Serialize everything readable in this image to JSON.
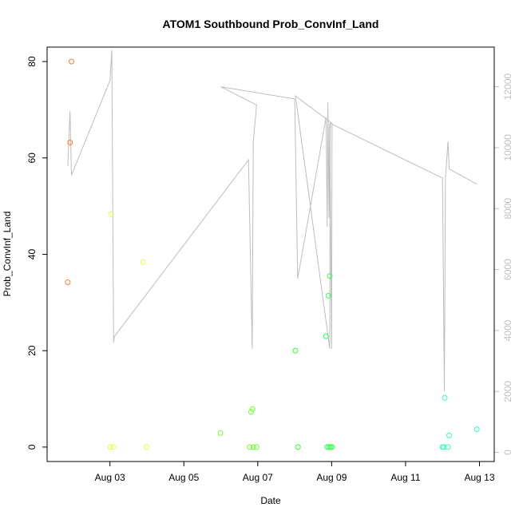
{
  "chart_data": {
    "type": "scatter",
    "title": "ATOM1 Southbound Prob_ConvInf_Land",
    "xlabel": "Date",
    "ylabel": "Prob_ConvInf_Land",
    "xlim_days": [
      1.3,
      13.4
    ],
    "ylim": [
      -3,
      83
    ],
    "x_ticks": [
      {
        "day": 3,
        "label": "Aug 03"
      },
      {
        "day": 5,
        "label": "Aug 05"
      },
      {
        "day": 7,
        "label": "Aug 07"
      },
      {
        "day": 9,
        "label": "Aug 09"
      },
      {
        "day": 11,
        "label": "Aug 11"
      },
      {
        "day": 13,
        "label": "Aug 13"
      }
    ],
    "y_ticks": [
      0,
      20,
      40,
      60,
      80
    ],
    "secondary_axis": {
      "ticks": [
        0,
        2000,
        4000,
        6000,
        8000,
        10000,
        12000
      ],
      "lim": [
        -300,
        13300
      ],
      "color": "#c0c0c0"
    },
    "points": [
      {
        "x": 1.86,
        "y": 34.2,
        "color": "#ff7f2a"
      },
      {
        "x": 1.92,
        "y": 63.2,
        "color": "#ff7f2a"
      },
      {
        "x": 1.96,
        "y": 80.0,
        "color": "#ff7f2a"
      },
      {
        "x": 3.03,
        "y": 48.3,
        "color": "#e6ff3a"
      },
      {
        "x": 3.01,
        "y": 0.0,
        "color": "#e6ff3a"
      },
      {
        "x": 3.1,
        "y": 0.0,
        "color": "#e6ff3a"
      },
      {
        "x": 3.9,
        "y": 38.4,
        "color": "#e6ff3a"
      },
      {
        "x": 3.99,
        "y": 0.0,
        "color": "#e6ff3a"
      },
      {
        "x": 5.99,
        "y": 2.9,
        "color": "#7dff2a"
      },
      {
        "x": 6.78,
        "y": 0.0,
        "color": "#6dff2a"
      },
      {
        "x": 6.82,
        "y": 7.3,
        "color": "#6dff2a"
      },
      {
        "x": 6.86,
        "y": 7.9,
        "color": "#6dff2a"
      },
      {
        "x": 6.88,
        "y": 0.0,
        "color": "#6dff2a"
      },
      {
        "x": 6.97,
        "y": 0.0,
        "color": "#6dff2a"
      },
      {
        "x": 8.02,
        "y": 20.0,
        "color": "#2bff2b"
      },
      {
        "x": 8.09,
        "y": 0.0,
        "color": "#2bff2b"
      },
      {
        "x": 8.85,
        "y": 23.0,
        "color": "#2bff4a"
      },
      {
        "x": 8.88,
        "y": 0.0,
        "color": "#2bff4a"
      },
      {
        "x": 8.91,
        "y": 31.4,
        "color": "#2bff4a"
      },
      {
        "x": 8.93,
        "y": 0.0,
        "color": "#2bff4a"
      },
      {
        "x": 8.95,
        "y": 35.5,
        "color": "#2bff4a"
      },
      {
        "x": 8.97,
        "y": 0.0,
        "color": "#2bff4a"
      },
      {
        "x": 9.01,
        "y": 0.0,
        "color": "#2bff4a"
      },
      {
        "x": 12.0,
        "y": 0.0,
        "color": "#2bffb0"
      },
      {
        "x": 12.03,
        "y": 0.0,
        "color": "#2bffb0"
      },
      {
        "x": 12.06,
        "y": 10.2,
        "color": "#2bffb0"
      },
      {
        "x": 12.15,
        "y": 0.0,
        "color": "#2bffb0"
      },
      {
        "x": 12.18,
        "y": 2.4,
        "color": "#2bffb0"
      },
      {
        "x": 12.93,
        "y": 3.7,
        "color": "#2bffd0"
      }
    ],
    "secondary_line": [
      {
        "x": 1.86,
        "y": 9400
      },
      {
        "x": 1.92,
        "y": 11200
      },
      {
        "x": 1.96,
        "y": 9100
      },
      {
        "x": 3.0,
        "y": 12200
      },
      {
        "x": 3.05,
        "y": 13200
      },
      {
        "x": 3.1,
        "y": 3600
      },
      {
        "x": 3.12,
        "y": 3800
      },
      {
        "x": 6.75,
        "y": 9600
      },
      {
        "x": 6.85,
        "y": 3400
      },
      {
        "x": 6.88,
        "y": 10200
      },
      {
        "x": 6.97,
        "y": 11400
      },
      {
        "x": 6.0,
        "y": 12000
      },
      {
        "x": 8.0,
        "y": 11600
      },
      {
        "x": 8.08,
        "y": 5700
      },
      {
        "x": 8.85,
        "y": 11000
      },
      {
        "x": 8.88,
        "y": 7400
      },
      {
        "x": 8.9,
        "y": 11500
      },
      {
        "x": 8.93,
        "y": 7700
      },
      {
        "x": 8.95,
        "y": 10800
      },
      {
        "x": 9.0,
        "y": 3400
      },
      {
        "x": 9.01,
        "y": 10800
      },
      {
        "x": 8.02,
        "y": 11700
      },
      {
        "x": 8.95,
        "y": 3400
      },
      {
        "x": 8.96,
        "y": 10800
      },
      {
        "x": 12.0,
        "y": 9000
      },
      {
        "x": 12.05,
        "y": 2000
      },
      {
        "x": 12.08,
        "y": 9000
      },
      {
        "x": 12.15,
        "y": 10200
      },
      {
        "x": 12.18,
        "y": 9300
      },
      {
        "x": 12.93,
        "y": 8800
      }
    ]
  }
}
